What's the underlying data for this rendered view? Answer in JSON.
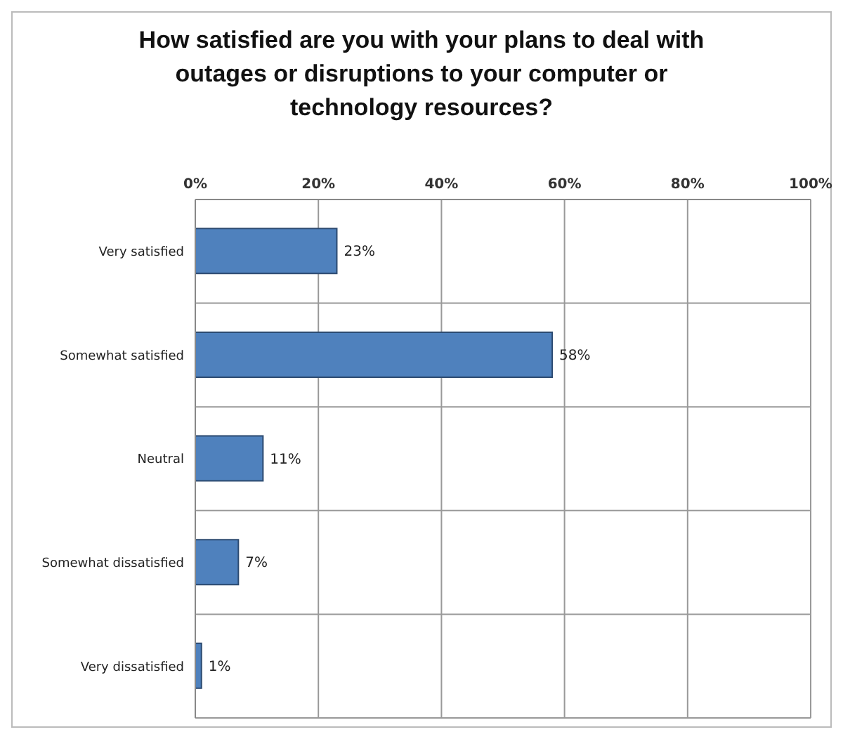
{
  "chart_data": {
    "type": "bar",
    "orientation": "horizontal",
    "title": "How satisfied are you with your plans to deal with outages or disruptions to your computer or technology resources?",
    "categories": [
      "Very satisfied",
      "Somewhat satisfied",
      "Neutral",
      "Somewhat dissatisfied",
      "Very dissatisfied"
    ],
    "values": [
      23,
      58,
      11,
      7,
      1
    ],
    "color": "#4f81bd",
    "value_labels": [
      "23%",
      "58%",
      "11%",
      "7%",
      "1%"
    ],
    "xlim": [
      0,
      100
    ],
    "xticks": [
      {
        "value": 0,
        "label": "0%"
      },
      {
        "value": 20,
        "label": "20%"
      },
      {
        "value": 40,
        "label": "40%"
      },
      {
        "value": 60,
        "label": "60%"
      },
      {
        "value": 80,
        "label": "80%"
      },
      {
        "value": 100,
        "label": "100%"
      }
    ],
    "grid": true
  }
}
